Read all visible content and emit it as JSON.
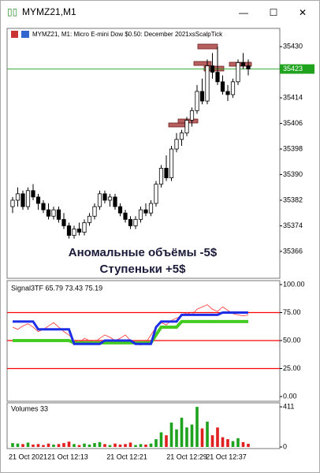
{
  "window": {
    "title": "MYMZ21,M1",
    "buttons": [
      "—",
      "☐",
      "✕"
    ]
  },
  "price_chart": {
    "type": "candlestick",
    "header": "MYMZ21, M1:  Micro E-mini Dow $0.50: December 2021xsScalpTick",
    "annotations": [
      "Аномальные объёмы -5$",
      "Ступеньки +5$"
    ],
    "ylim": [
      35357.6,
      35435.7
    ],
    "yticks": [
      35430,
      35414,
      35406,
      35398,
      35390,
      35382,
      35374,
      35366
    ],
    "current_price": 35423,
    "up_color": "#ffffff",
    "down_color": "#000000",
    "current_color": "#1fa31f",
    "open": [
      35380,
      35382,
      35384,
      35380,
      35385,
      35383,
      35381,
      35379,
      35377,
      35379,
      35376,
      35374,
      35371,
      35373,
      35372,
      35375,
      35377,
      35380,
      35384,
      35382,
      35383,
      35380,
      35378,
      35376,
      35374,
      35376,
      35379,
      35378,
      35381,
      35387,
      35392,
      35389,
      35398,
      35401,
      35403,
      35407,
      35410,
      35416,
      35413,
      35424,
      35422,
      35419,
      35416,
      35415,
      35419,
      35425,
      35424
    ],
    "high": [
      35383,
      35386,
      35385,
      35386,
      35387,
      35384,
      35382,
      35381,
      35380,
      35380,
      35378,
      35375,
      35374,
      35375,
      35376,
      35378,
      35381,
      35385,
      35385,
      35384,
      35384,
      35381,
      35379,
      35377,
      35377,
      35380,
      35381,
      35382,
      35388,
      35393,
      35396,
      35399,
      35403,
      35404,
      35408,
      35411,
      35418,
      35420,
      35426,
      35428,
      35430,
      35421,
      35418,
      35420,
      35426,
      35428,
      35426
    ],
    "low": [
      35378,
      35380,
      35379,
      35379,
      35382,
      35379,
      35378,
      35376,
      35376,
      35375,
      35373,
      35370,
      35370,
      35371,
      35371,
      35374,
      35376,
      35379,
      35381,
      35380,
      35379,
      35377,
      35375,
      35373,
      35373,
      35375,
      35377,
      35377,
      35380,
      35386,
      35388,
      35388,
      35397,
      35399,
      35402,
      35405,
      35409,
      35412,
      35412,
      35420,
      35418,
      35415,
      35413,
      35414,
      35418,
      35423,
      35421
    ],
    "close": [
      35382,
      35384,
      35380,
      35385,
      35383,
      35381,
      35379,
      35377,
      35379,
      35376,
      35374,
      35371,
      35373,
      35372,
      35375,
      35377,
      35380,
      35384,
      35382,
      35383,
      35380,
      35378,
      35376,
      35374,
      35376,
      35379,
      35378,
      35381,
      35387,
      35392,
      35389,
      35398,
      35401,
      35403,
      35407,
      35410,
      35416,
      35413,
      35424,
      35422,
      35419,
      35416,
      35415,
      35419,
      35425,
      35424,
      35423
    ]
  },
  "indicator": {
    "type": "line",
    "label": "Signal3TF 65.79 73.43 75.19",
    "ylim": [
      -4.2,
      103.5
    ],
    "yticks": [
      {
        "value": 100,
        "label": "100.00"
      },
      {
        "value": 75,
        "label": "75.00"
      },
      {
        "value": 50,
        "label": "50.00"
      },
      {
        "value": 25,
        "label": "25.00"
      },
      {
        "value": 0,
        "label": "0.00"
      }
    ],
    "levels": [
      75,
      50,
      25
    ],
    "level_color": "#ff0000",
    "series": [
      {
        "color": "#ff3030",
        "width": 0.8,
        "values": [
          62,
          60,
          63,
          65,
          62,
          58,
          60,
          63,
          66,
          62,
          58,
          55,
          50,
          48,
          52,
          50,
          48,
          52,
          55,
          53,
          50,
          52,
          55,
          50,
          48,
          46,
          48,
          55,
          62,
          66,
          64,
          68,
          70,
          72,
          75,
          73,
          78,
          80,
          82,
          78,
          76,
          80,
          77,
          74,
          73,
          72,
          73
        ]
      },
      {
        "color": "#44cc22",
        "width": 4,
        "values": [
          50,
          50,
          50,
          50,
          50,
          50,
          50,
          50,
          50,
          50,
          50,
          50,
          48,
          48,
          48,
          48,
          48,
          48,
          48,
          48,
          48,
          48,
          48,
          48,
          48,
          48,
          48,
          48,
          55,
          62,
          62,
          62,
          62,
          67,
          67,
          67,
          67,
          67,
          67,
          67,
          67,
          67,
          67,
          67,
          67,
          67,
          67
        ]
      },
      {
        "color": "#1e2ee6",
        "width": 3,
        "values": [
          67,
          67,
          67,
          67,
          67,
          60,
          60,
          60,
          60,
          60,
          60,
          60,
          47,
          47,
          47,
          47,
          47,
          47,
          50,
          50,
          50,
          50,
          50,
          50,
          47,
          47,
          47,
          47,
          62,
          67,
          67,
          67,
          67,
          73,
          73,
          73,
          73,
          73,
          73,
          73,
          73,
          75,
          75,
          75,
          75,
          75,
          75
        ]
      }
    ]
  },
  "volume": {
    "type": "bar",
    "label": "Volumes 33",
    "ylim": [
      -16,
      452
    ],
    "yticks": [
      411,
      0
    ],
    "up_color": "#1fa31f",
    "down_color": "#e02020",
    "values": [
      40,
      35,
      30,
      45,
      25,
      30,
      20,
      35,
      25,
      30,
      40,
      55,
      30,
      20,
      35,
      25,
      40,
      50,
      30,
      20,
      35,
      25,
      30,
      45,
      20,
      30,
      25,
      35,
      80,
      150,
      120,
      250,
      180,
      300,
      200,
      230,
      411,
      190,
      260,
      120,
      200,
      100,
      80,
      60,
      90,
      50,
      33
    ]
  },
  "time_axis": [
    "21 Oct 2021",
    "21 Oct 12:13",
    "21 Oct 12:21",
    "21 Oct 12:29",
    "21 Oct 12:37"
  ]
}
